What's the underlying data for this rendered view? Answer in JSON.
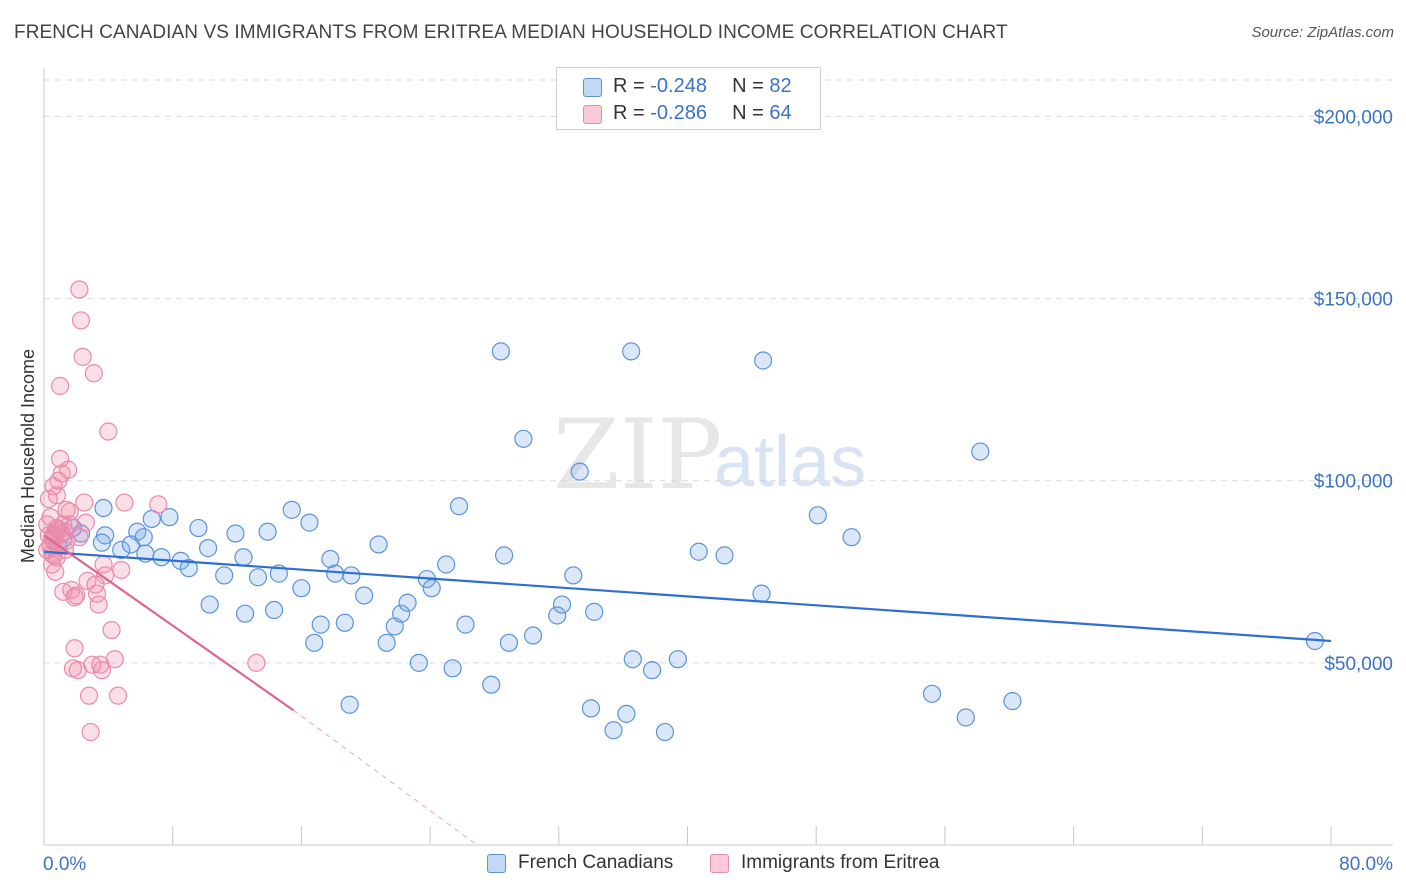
{
  "title": "FRENCH CANADIAN VS IMMIGRANTS FROM ERITREA MEDIAN HOUSEHOLD INCOME CORRELATION CHART",
  "source": "Source: ZipAtlas.com",
  "watermark": {
    "zip": "ZIP",
    "atlas": "atlas"
  },
  "legend": {
    "rows": [
      {
        "r_label": "R = ",
        "r_value": "-0.248",
        "n_label": "N = ",
        "n_value": "82"
      },
      {
        "r_label": "R = ",
        "r_value": "-0.286",
        "n_label": "N = ",
        "n_value": "64"
      }
    ]
  },
  "bottom_legend": {
    "series1": "French Canadians",
    "series2": "Immigrants from Eritrea"
  },
  "colors": {
    "blue_fill": "rgba(120,168,232,0.28)",
    "blue_stroke": "#5b93db",
    "blue_line": "#2e6fcf",
    "pink_fill": "rgba(242,140,170,0.28)",
    "pink_stroke": "#ea8aab",
    "pink_line": "#e0648f",
    "grid": "#d9d9d9",
    "tick_text": "#3b73c4"
  },
  "chart_data": {
    "type": "scatter",
    "title": "FRENCH CANADIAN VS IMMIGRANTS FROM ERITREA MEDIAN HOUSEHOLD INCOME CORRELATION CHART",
    "xlabel": "",
    "ylabel": "Median Household Income",
    "xlim": [
      0,
      80
    ],
    "ylim": [
      0,
      210000
    ],
    "x_ticks_labeled": [
      "0.0%",
      "80.0%"
    ],
    "y_ticks": [
      {
        "value": 50000,
        "label": "$50,000"
      },
      {
        "value": 100000,
        "label": "$100,000"
      },
      {
        "value": 150000,
        "label": "$150,000"
      },
      {
        "value": 200000,
        "label": "$200,000"
      }
    ],
    "grid": "horizontal dashed",
    "legend_position": "top-center",
    "series": [
      {
        "name": "French Canadians",
        "r": -0.248,
        "n": 82,
        "trend": {
          "x": [
            0,
            80
          ],
          "y": [
            80500,
            56000
          ]
        },
        "points": [
          [
            0.6,
            85000
          ],
          [
            0.9,
            82000
          ],
          [
            1.2,
            84000
          ],
          [
            1.8,
            87000
          ],
          [
            2.3,
            85500
          ],
          [
            3.8,
            85000
          ],
          [
            3.6,
            83000
          ],
          [
            3.7,
            92500
          ],
          [
            4.8,
            81000
          ],
          [
            5.4,
            82500
          ],
          [
            5.8,
            86000
          ],
          [
            6.3,
            80000
          ],
          [
            6.7,
            89500
          ],
          [
            7.3,
            79000
          ],
          [
            7.8,
            90000
          ],
          [
            8.5,
            78000
          ],
          [
            9.0,
            76000
          ],
          [
            9.6,
            87000
          ],
          [
            10.2,
            81500
          ],
          [
            11.2,
            74000
          ],
          [
            11.9,
            85500
          ],
          [
            12.4,
            79000
          ],
          [
            13.3,
            73500
          ],
          [
            13.9,
            86000
          ],
          [
            14.3,
            64500
          ],
          [
            14.6,
            74500
          ],
          [
            15.4,
            92000
          ],
          [
            16.0,
            70500
          ],
          [
            16.5,
            88500
          ],
          [
            16.8,
            55500
          ],
          [
            17.2,
            60500
          ],
          [
            17.8,
            78500
          ],
          [
            18.1,
            74500
          ],
          [
            18.7,
            61000
          ],
          [
            19.1,
            74000
          ],
          [
            19.9,
            68500
          ],
          [
            20.8,
            82500
          ],
          [
            21.3,
            55500
          ],
          [
            21.8,
            60000
          ],
          [
            22.2,
            63500
          ],
          [
            22.6,
            66500
          ],
          [
            23.3,
            50000
          ],
          [
            23.8,
            73000
          ],
          [
            24.1,
            70500
          ],
          [
            25.0,
            77000
          ],
          [
            25.4,
            48500
          ],
          [
            25.8,
            93000
          ],
          [
            26.2,
            60500
          ],
          [
            27.8,
            44000
          ],
          [
            28.6,
            79500
          ],
          [
            28.9,
            55500
          ],
          [
            29.8,
            111500
          ],
          [
            30.4,
            57500
          ],
          [
            31.9,
            63000
          ],
          [
            32.2,
            66000
          ],
          [
            32.9,
            74000
          ],
          [
            33.3,
            102500
          ],
          [
            34.0,
            37500
          ],
          [
            35.4,
            31500
          ],
          [
            36.2,
            36000
          ],
          [
            36.5,
            135500
          ],
          [
            36.6,
            51000
          ],
          [
            37.8,
            48000
          ],
          [
            38.6,
            31000
          ],
          [
            39.4,
            51000
          ],
          [
            40.7,
            80500
          ],
          [
            42.3,
            79500
          ],
          [
            44.6,
            69000
          ],
          [
            44.7,
            133000
          ],
          [
            48.1,
            90500
          ],
          [
            50.2,
            84500
          ],
          [
            55.2,
            41500
          ],
          [
            58.2,
            108000
          ],
          [
            57.3,
            35000
          ],
          [
            60.2,
            39500
          ],
          [
            28.4,
            135500
          ],
          [
            34.2,
            64000
          ],
          [
            19.0,
            38500
          ],
          [
            10.3,
            66000
          ],
          [
            12.5,
            63500
          ],
          [
            6.2,
            84500
          ],
          [
            79.0,
            56000
          ]
        ]
      },
      {
        "name": "Immigrants from Eritrea",
        "r": -0.286,
        "n": 64,
        "trend": {
          "x": [
            0,
            15.5
          ],
          "y": [
            85000,
            37000
          ]
        },
        "trend_dashed": {
          "x": [
            15.5,
            30
          ],
          "y": [
            37000,
            -10000
          ]
        },
        "points": [
          [
            0.2,
            88000
          ],
          [
            0.3,
            85000
          ],
          [
            0.4,
            82000
          ],
          [
            0.5,
            80000
          ],
          [
            0.5,
            77000
          ],
          [
            0.6,
            83500
          ],
          [
            0.7,
            86000
          ],
          [
            0.8,
            79000
          ],
          [
            0.8,
            96000
          ],
          [
            0.9,
            100000
          ],
          [
            1.0,
            106000
          ],
          [
            1.1,
            85500
          ],
          [
            1.2,
            88000
          ],
          [
            1.3,
            81000
          ],
          [
            1.4,
            92000
          ],
          [
            1.5,
            103000
          ],
          [
            1.6,
            91500
          ],
          [
            1.7,
            70000
          ],
          [
            1.8,
            48500
          ],
          [
            1.9,
            54000
          ],
          [
            2.0,
            68500
          ],
          [
            2.1,
            48000
          ],
          [
            2.2,
            152500
          ],
          [
            2.3,
            144000
          ],
          [
            2.4,
            134000
          ],
          [
            2.5,
            94000
          ],
          [
            2.6,
            88500
          ],
          [
            2.7,
            72500
          ],
          [
            2.8,
            41000
          ],
          [
            2.9,
            31000
          ],
          [
            3.0,
            49500
          ],
          [
            3.1,
            129500
          ],
          [
            3.2,
            71500
          ],
          [
            3.3,
            69000
          ],
          [
            3.4,
            66000
          ],
          [
            3.5,
            49500
          ],
          [
            3.6,
            48000
          ],
          [
            3.7,
            77000
          ],
          [
            3.8,
            74000
          ],
          [
            4.0,
            113500
          ],
          [
            4.2,
            59000
          ],
          [
            4.4,
            51000
          ],
          [
            4.6,
            41000
          ],
          [
            4.8,
            75500
          ],
          [
            5.0,
            94000
          ],
          [
            0.6,
            98500
          ],
          [
            0.9,
            86500
          ],
          [
            1.0,
            126000
          ],
          [
            1.1,
            102000
          ],
          [
            1.2,
            69500
          ],
          [
            0.3,
            95000
          ],
          [
            0.4,
            90000
          ],
          [
            0.7,
            75000
          ],
          [
            1.3,
            86000
          ],
          [
            1.4,
            83500
          ],
          [
            2.2,
            84500
          ],
          [
            1.6,
            88000
          ],
          [
            0.2,
            81000
          ],
          [
            0.5,
            84000
          ],
          [
            0.8,
            87000
          ],
          [
            13.2,
            50000
          ],
          [
            7.1,
            93500
          ],
          [
            1.9,
            68000
          ],
          [
            0.6,
            79500
          ]
        ]
      }
    ]
  }
}
